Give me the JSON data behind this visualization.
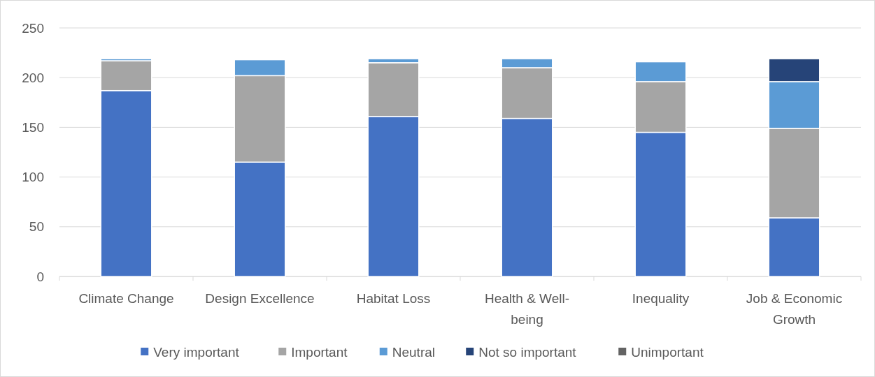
{
  "chart_data": {
    "type": "bar",
    "stacked": true,
    "categories": [
      "Climate Change",
      "Design Excellence",
      "Habitat Loss",
      "Health & Well-being",
      "Inequality",
      "Job & Economic Growth"
    ],
    "series": [
      {
        "name": "Very important",
        "color": "#4472c4",
        "values": [
          187,
          115,
          161,
          159,
          145,
          59
        ]
      },
      {
        "name": "Important",
        "color": "#a5a5a5",
        "values": [
          30,
          87,
          54,
          51,
          51,
          90
        ]
      },
      {
        "name": "Neutral",
        "color": "#5b9bd5",
        "values": [
          2,
          16,
          4,
          9,
          20,
          47
        ]
      },
      {
        "name": "Not so important",
        "color": "#264478",
        "values": [
          0,
          0,
          0,
          0,
          1,
          23
        ]
      },
      {
        "name": "Unimportant",
        "color": "#636363",
        "values": [
          0,
          0,
          0,
          0,
          0,
          0
        ]
      }
    ],
    "ylim": [
      0,
      250
    ],
    "yticks": [
      0,
      50,
      100,
      150,
      200,
      250
    ],
    "grid": "y",
    "legend": "bottom"
  }
}
